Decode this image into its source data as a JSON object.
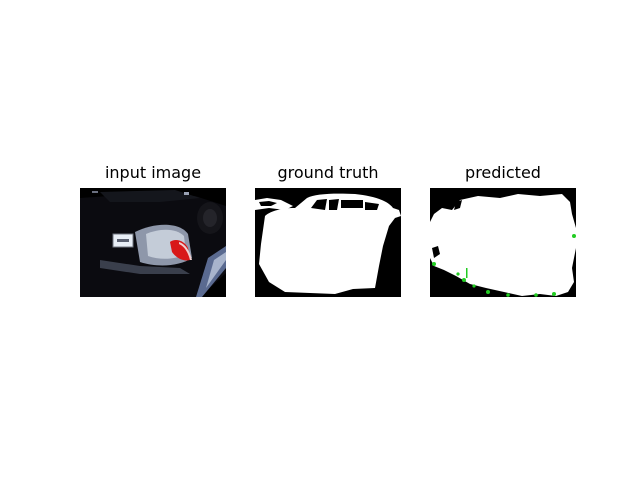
{
  "panels": [
    {
      "title": "input image"
    },
    {
      "title": "ground truth"
    },
    {
      "title": "predicted"
    }
  ],
  "colors": {
    "background": "#ffffff",
    "mask_foreground": "#ffffff",
    "mask_background": "#000000",
    "prediction_error": "#22cc22",
    "taillight": "#d81818"
  }
}
